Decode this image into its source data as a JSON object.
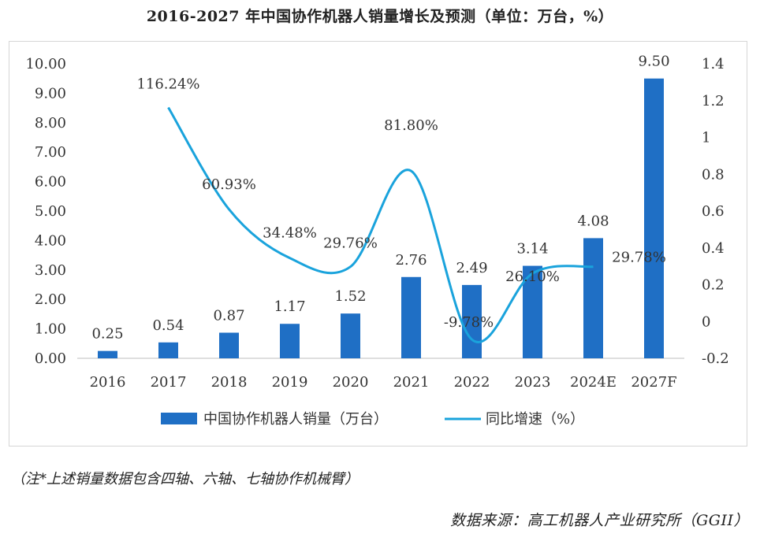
{
  "title": "2016-2027 年中国协作机器人销量增长及预测（单位：万台，%）",
  "note": "（注*上述销量数据包含四轴、六轴、七轴协作机械臂）",
  "source": "数据来源：高工机器人产业研究所（GGII）",
  "chart_data": {
    "type": "bar+line",
    "categories": [
      "2016",
      "2017",
      "2018",
      "2019",
      "2020",
      "2021",
      "2022",
      "2023",
      "2024E",
      "2027F"
    ],
    "series": [
      {
        "name": "中国协作机器人销量（万台）",
        "type": "bar",
        "axis": "left",
        "color": "#1f6fc5",
        "values": [
          0.25,
          0.54,
          0.87,
          1.17,
          1.52,
          2.76,
          2.49,
          3.14,
          4.08,
          9.5
        ],
        "labels": [
          "0.25",
          "0.54",
          "0.87",
          "1.17",
          "1.52",
          "2.76",
          "2.49",
          "3.14",
          "4.08",
          "9.50"
        ]
      },
      {
        "name": "同比增速（%）",
        "type": "line",
        "axis": "right",
        "color": "#1aa3dc",
        "values": [
          null,
          1.1624,
          0.6093,
          0.3448,
          0.2976,
          0.818,
          -0.0978,
          0.261,
          0.2978,
          null
        ],
        "labels": [
          "",
          "116.24%",
          "60.93%",
          "34.48%",
          "29.76%",
          "81.80%",
          "-9.78%",
          "26.10%",
          "29.78%",
          ""
        ]
      }
    ],
    "y_left": {
      "min": 0,
      "max": 10,
      "step": 1,
      "ticks": [
        "0.00",
        "1.00",
        "2.00",
        "3.00",
        "4.00",
        "5.00",
        "6.00",
        "7.00",
        "8.00",
        "9.00",
        "10.00"
      ]
    },
    "y_right": {
      "min": -0.2,
      "max": 1.4,
      "step": 0.2,
      "ticks": [
        "-0.2",
        "0",
        "0.2",
        "0.4",
        "0.6",
        "0.8",
        "1",
        "1.2",
        "1.4"
      ]
    },
    "grid": false,
    "legend_position": "bottom"
  }
}
